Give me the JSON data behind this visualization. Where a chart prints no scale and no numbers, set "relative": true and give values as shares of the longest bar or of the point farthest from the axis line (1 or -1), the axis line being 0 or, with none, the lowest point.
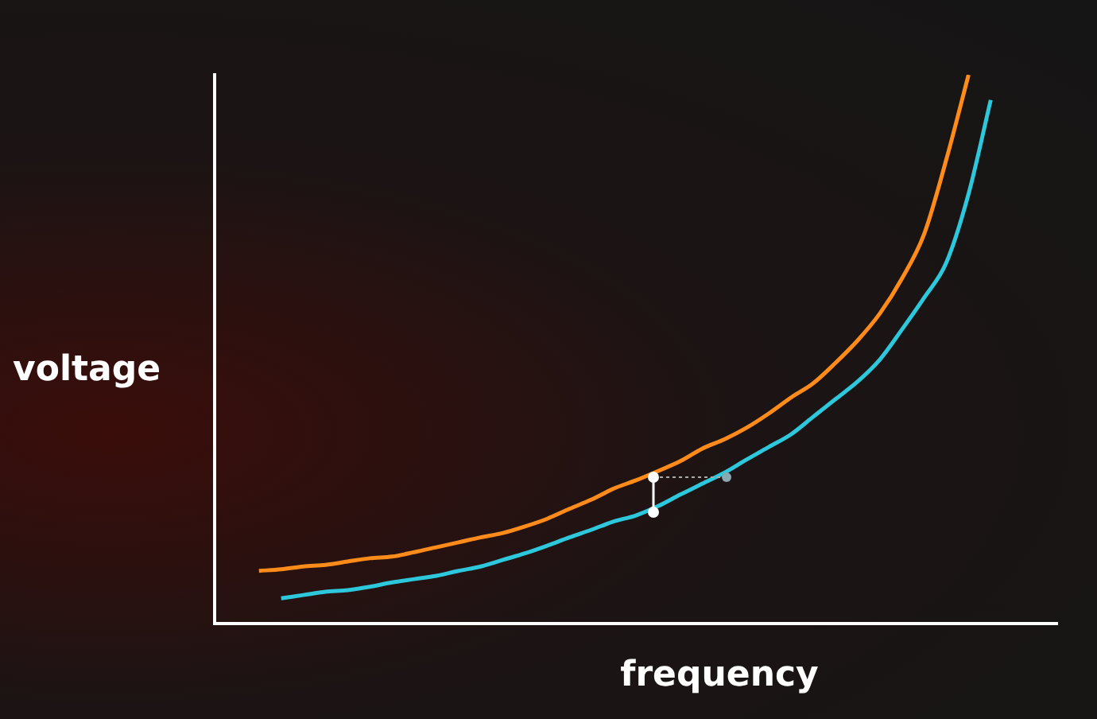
{
  "chart_data": {
    "type": "line",
    "xlabel": "frequency",
    "ylabel": "voltage",
    "relative": true,
    "grid": false,
    "legend": false,
    "marker": "none",
    "line_style": "solid",
    "categories": [
      null,
      null,
      null,
      null,
      null,
      null,
      null,
      null,
      null,
      null,
      null,
      null,
      null,
      null,
      null,
      null,
      null,
      null,
      null,
      null,
      null,
      null,
      null,
      null,
      null,
      null,
      null,
      null,
      null,
      null,
      null,
      null,
      null,
      null,
      null,
      null,
      null,
      null,
      null
    ],
    "series": [
      {
        "color": "#ff8c1a",
        "values": [
          null,
          null,
          0.096,
          0.099,
          0.104,
          0.107,
          0.113,
          0.119,
          0.122,
          0.13,
          0.139,
          0.148,
          0.157,
          0.165,
          0.177,
          0.191,
          0.209,
          0.226,
          0.246,
          0.261,
          0.278,
          0.296,
          0.319,
          0.336,
          0.357,
          0.383,
          0.412,
          0.438,
          0.475,
          0.516,
          0.565,
          0.629,
          0.71,
          0.846,
          1,
          null,
          null,
          null,
          null
        ]
      },
      {
        "color": "#2ec8dc",
        "values": [
          null,
          null,
          null,
          0.046,
          0.052,
          0.058,
          0.061,
          0.067,
          0.075,
          0.081,
          0.087,
          0.096,
          0.104,
          0.116,
          0.128,
          0.142,
          0.157,
          0.171,
          0.186,
          0.197,
          0.214,
          0.235,
          0.255,
          0.275,
          0.299,
          0.322,
          0.345,
          0.377,
          0.409,
          0.441,
          0.481,
          0.536,
          0.594,
          0.658,
          0.783,
          0.954,
          null,
          null,
          null
        ]
      }
    ]
  }
}
